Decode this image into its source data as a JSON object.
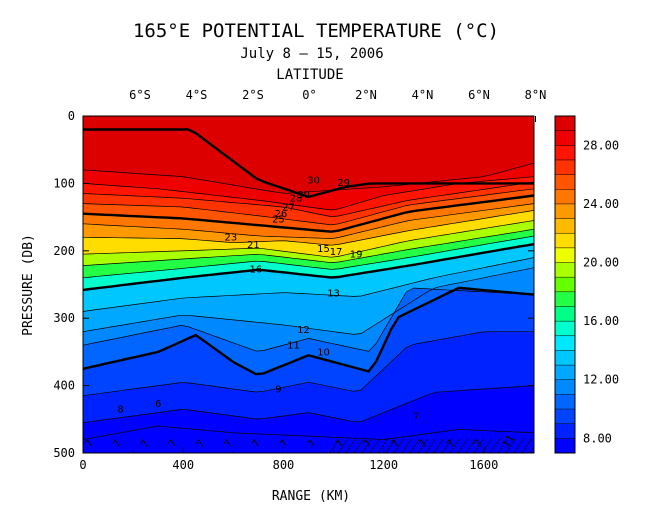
{
  "chart_data": {
    "type": "contour",
    "title": "165°E POTENTIAL TEMPERATURE (°C)",
    "subtitle": "July 8 – 15, 2006",
    "top_axis_label": "LATITUDE",
    "top_ticks": [
      "6°S",
      "4°S",
      "2°S",
      "0°",
      "2°N",
      "4°N",
      "6°N",
      "8°N"
    ],
    "xlabel": "RANGE (KM)",
    "ylabel": "PRESSURE (DB)",
    "xlim": [
      0,
      1800
    ],
    "ylim": [
      500,
      0
    ],
    "x_ticks": [
      "0",
      "400",
      "800",
      "1200",
      "1600"
    ],
    "y_ticks": [
      "0",
      "100",
      "200",
      "300",
      "400",
      "500"
    ],
    "colorbar": {
      "range": [
        7,
        30
      ],
      "labels": [
        "28.00",
        "24.00",
        "20.00",
        "16.00",
        "12.00",
        "8.00"
      ],
      "colors": [
        "#0000ff",
        "#0022ff",
        "#0044ff",
        "#0066ff",
        "#0088ff",
        "#00a8ff",
        "#00c8ff",
        "#00e8ff",
        "#00ffcc",
        "#00ff88",
        "#22ff44",
        "#66ff00",
        "#aaff00",
        "#eeff00",
        "#ffdd00",
        "#ffbb00",
        "#ff9900",
        "#ff7700",
        "#ff5500",
        "#ff3300",
        "#ff1500",
        "#ee0000",
        "#dd0000"
      ]
    },
    "contour_labels": [
      "30",
      "30",
      "29",
      "28",
      "27",
      "26",
      "25",
      "21",
      "23",
      "15",
      "17",
      "19",
      "16",
      "13",
      "12",
      "11",
      "10",
      "9",
      "8",
      "6",
      "7"
    ],
    "bottom_labels": [
      "7",
      "7",
      "7",
      "7",
      "7",
      "7",
      "7",
      "7",
      "7",
      "7",
      "7",
      "7",
      "7",
      "7",
      "7",
      "11"
    ],
    "contours": [
      {
        "level": 30,
        "x": [
          430,
          700,
          900,
          1050,
          1150
        ],
        "y": [
          20,
          95,
          120,
          105,
          100
        ]
      },
      {
        "level": 29,
        "x": [
          0,
          400,
          800,
          1000,
          1200,
          1600,
          1800
        ],
        "y": [
          80,
          90,
          115,
          110,
          105,
          90,
          70
        ]
      },
      {
        "level": 28,
        "x": [
          0,
          300,
          700,
          1000,
          1200,
          1500,
          1800
        ],
        "y": [
          100,
          108,
          125,
          140,
          118,
          100,
          90
        ]
      },
      {
        "level": 27,
        "x": [
          0,
          400,
          800,
          1000,
          1300,
          1800
        ],
        "y": [
          115,
          122,
          135,
          150,
          125,
          98
        ]
      },
      {
        "level": 26,
        "x": [
          0,
          400,
          700,
          1000,
          1300,
          1800
        ],
        "y": [
          130,
          135,
          148,
          162,
          132,
          108
        ]
      },
      {
        "level": 25,
        "x": [
          0,
          400,
          700,
          1000,
          1300,
          1800
        ],
        "y": [
          145,
          152,
          162,
          172,
          142,
          118
        ]
      },
      {
        "level": 24,
        "x": [
          0,
          400,
          700,
          1000,
          1300,
          1800
        ],
        "y": [
          160,
          168,
          178,
          182,
          155,
          130
        ]
      },
      {
        "level": 23,
        "x": [
          0,
          400,
          600,
          800,
          1000,
          1300,
          1800
        ],
        "y": [
          180,
          182,
          188,
          185,
          192,
          170,
          140
        ]
      },
      {
        "level": 21,
        "x": [
          0,
          400,
          700,
          1000,
          1300,
          1800
        ],
        "y": [
          205,
          200,
          196,
          210,
          185,
          155
        ]
      },
      {
        "level": 19,
        "x": [
          0,
          400,
          700,
          1000,
          1300,
          1800
        ],
        "y": [
          222,
          212,
          205,
          218,
          198,
          168
        ]
      },
      {
        "level": 17,
        "x": [
          0,
          400,
          700,
          1000,
          1300,
          1800
        ],
        "y": [
          240,
          226,
          215,
          228,
          210,
          178
        ]
      },
      {
        "level": 15,
        "x": [
          0,
          400,
          700,
          1000,
          1300,
          1800
        ],
        "y": [
          258,
          240,
          228,
          240,
          222,
          190
        ]
      },
      {
        "level": 13,
        "x": [
          0,
          400,
          800,
          1100,
          1400,
          1800
        ],
        "y": [
          290,
          270,
          262,
          268,
          240,
          210
        ]
      },
      {
        "level": 12,
        "x": [
          0,
          400,
          800,
          1100,
          1400,
          1800
        ],
        "y": [
          320,
          295,
          310,
          325,
          255,
          225
        ]
      },
      {
        "level": 11,
        "x": [
          0,
          400,
          700,
          900,
          1150,
          1300,
          1800
        ],
        "y": [
          340,
          310,
          350,
          330,
          350,
          255,
          265
        ]
      },
      {
        "level": 10,
        "x": [
          0,
          300,
          450,
          600,
          700,
          900,
          1150,
          1250,
          1500,
          1800
        ],
        "y": [
          375,
          350,
          325,
          365,
          385,
          355,
          380,
          300,
          255,
          265
        ]
      },
      {
        "level": 9,
        "x": [
          0,
          400,
          700,
          900,
          1100,
          1300,
          1600,
          1800
        ],
        "y": [
          415,
          395,
          410,
          395,
          410,
          340,
          320,
          320
        ]
      },
      {
        "level": 8,
        "x": [
          0,
          400,
          700,
          900,
          1100,
          1400,
          1800
        ],
        "y": [
          455,
          435,
          450,
          440,
          455,
          410,
          400
        ]
      },
      {
        "level": 7,
        "x": [
          0,
          300,
          600,
          900,
          1200,
          1500,
          1800
        ],
        "y": [
          480,
          460,
          470,
          475,
          480,
          465,
          470
        ]
      }
    ]
  }
}
